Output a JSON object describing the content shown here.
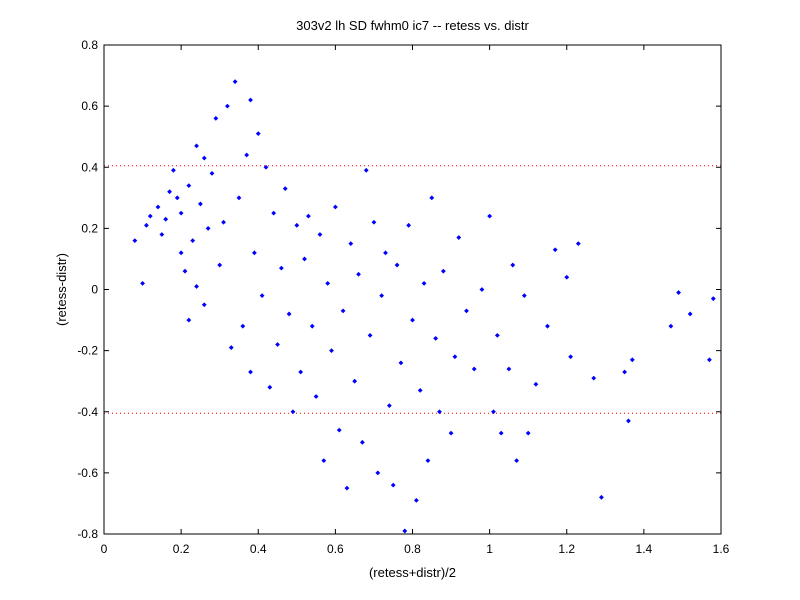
{
  "chart_data": {
    "type": "scatter",
    "title": "303v2 lh SD fwhm0 ic7 -- retess vs. distr",
    "xlabel": "(retess+distr)/2",
    "ylabel": "(retess-distr)",
    "xlim": [
      0,
      1.6
    ],
    "ylim": [
      -0.8,
      0.8
    ],
    "xticks": [
      0,
      0.2,
      0.4,
      0.6,
      0.8,
      1,
      1.2,
      1.4,
      1.6
    ],
    "xtick_labels": [
      "0",
      "0.2",
      "0.4",
      "0.6",
      "0.8",
      "1",
      "1.2",
      "1.4",
      "1.6"
    ],
    "yticks": [
      -0.8,
      -0.6,
      -0.4,
      -0.2,
      0,
      0.2,
      0.4,
      0.6,
      0.8
    ],
    "ytick_labels": [
      "-0.8",
      "-0.6",
      "-0.4",
      "-0.2",
      "0",
      "0.2",
      "0.4",
      "0.6",
      "0.8"
    ],
    "grid": false,
    "reference_lines": [
      {
        "y": 0.405,
        "color": "#ff0000",
        "style": "dotted"
      },
      {
        "y": -0.405,
        "color": "#ff0000",
        "style": "dotted"
      }
    ],
    "marker_color": "#0000ff",
    "series": [
      {
        "points": [
          [
            0.08,
            0.16
          ],
          [
            0.1,
            0.02
          ],
          [
            0.11,
            0.21
          ],
          [
            0.12,
            0.24
          ],
          [
            0.14,
            0.27
          ],
          [
            0.15,
            0.18
          ],
          [
            0.16,
            0.23
          ],
          [
            0.17,
            0.32
          ],
          [
            0.18,
            0.39
          ],
          [
            0.19,
            0.3
          ],
          [
            0.2,
            0.12
          ],
          [
            0.2,
            0.25
          ],
          [
            0.21,
            0.06
          ],
          [
            0.22,
            0.34
          ],
          [
            0.22,
            -0.1
          ],
          [
            0.23,
            0.16
          ],
          [
            0.24,
            0.47
          ],
          [
            0.24,
            0.01
          ],
          [
            0.25,
            0.28
          ],
          [
            0.26,
            0.43
          ],
          [
            0.26,
            -0.05
          ],
          [
            0.27,
            0.2
          ],
          [
            0.28,
            0.38
          ],
          [
            0.29,
            0.56
          ],
          [
            0.3,
            0.08
          ],
          [
            0.31,
            0.22
          ],
          [
            0.32,
            0.6
          ],
          [
            0.33,
            -0.19
          ],
          [
            0.34,
            0.68
          ],
          [
            0.35,
            0.3
          ],
          [
            0.36,
            -0.12
          ],
          [
            0.37,
            0.44
          ],
          [
            0.38,
            0.62
          ],
          [
            0.38,
            -0.27
          ],
          [
            0.39,
            0.12
          ],
          [
            0.4,
            0.51
          ],
          [
            0.41,
            -0.02
          ],
          [
            0.42,
            0.4
          ],
          [
            0.43,
            -0.32
          ],
          [
            0.44,
            0.25
          ],
          [
            0.45,
            -0.18
          ],
          [
            0.46,
            0.07
          ],
          [
            0.47,
            0.33
          ],
          [
            0.48,
            -0.08
          ],
          [
            0.49,
            -0.4
          ],
          [
            0.5,
            0.21
          ],
          [
            0.51,
            -0.27
          ],
          [
            0.52,
            0.1
          ],
          [
            0.53,
            0.24
          ],
          [
            0.54,
            -0.12
          ],
          [
            0.55,
            -0.35
          ],
          [
            0.56,
            0.18
          ],
          [
            0.57,
            -0.56
          ],
          [
            0.58,
            0.02
          ],
          [
            0.59,
            -0.2
          ],
          [
            0.6,
            0.27
          ],
          [
            0.61,
            -0.46
          ],
          [
            0.62,
            -0.07
          ],
          [
            0.63,
            -0.65
          ],
          [
            0.64,
            0.15
          ],
          [
            0.65,
            -0.3
          ],
          [
            0.66,
            0.05
          ],
          [
            0.67,
            -0.5
          ],
          [
            0.68,
            0.39
          ],
          [
            0.69,
            -0.15
          ],
          [
            0.7,
            0.22
          ],
          [
            0.71,
            -0.6
          ],
          [
            0.72,
            -0.02
          ],
          [
            0.73,
            0.12
          ],
          [
            0.74,
            -0.38
          ],
          [
            0.75,
            -0.64
          ],
          [
            0.76,
            0.08
          ],
          [
            0.77,
            -0.24
          ],
          [
            0.78,
            -0.79
          ],
          [
            0.79,
            0.21
          ],
          [
            0.8,
            -0.1
          ],
          [
            0.81,
            -0.69
          ],
          [
            0.82,
            -0.33
          ],
          [
            0.83,
            0.02
          ],
          [
            0.84,
            -0.56
          ],
          [
            0.85,
            0.3
          ],
          [
            0.86,
            -0.16
          ],
          [
            0.87,
            -0.4
          ],
          [
            0.88,
            0.06
          ],
          [
            0.9,
            -0.47
          ],
          [
            0.91,
            -0.22
          ],
          [
            0.92,
            0.17
          ],
          [
            0.94,
            -0.07
          ],
          [
            0.96,
            -0.26
          ],
          [
            0.98,
            0.0
          ],
          [
            1.0,
            0.24
          ],
          [
            1.01,
            -0.4
          ],
          [
            1.02,
            -0.15
          ],
          [
            1.03,
            -0.47
          ],
          [
            1.05,
            -0.26
          ],
          [
            1.06,
            0.08
          ],
          [
            1.07,
            -0.56
          ],
          [
            1.09,
            -0.02
          ],
          [
            1.1,
            -0.47
          ],
          [
            1.12,
            -0.31
          ],
          [
            1.15,
            -0.12
          ],
          [
            1.17,
            0.13
          ],
          [
            1.2,
            0.04
          ],
          [
            1.21,
            -0.22
          ],
          [
            1.23,
            0.15
          ],
          [
            1.27,
            -0.29
          ],
          [
            1.29,
            -0.68
          ],
          [
            1.35,
            -0.27
          ],
          [
            1.36,
            -0.43
          ],
          [
            1.37,
            -0.23
          ],
          [
            1.47,
            -0.12
          ],
          [
            1.49,
            -0.01
          ],
          [
            1.52,
            -0.08
          ],
          [
            1.57,
            -0.23
          ],
          [
            1.58,
            -0.03
          ]
        ]
      }
    ]
  }
}
